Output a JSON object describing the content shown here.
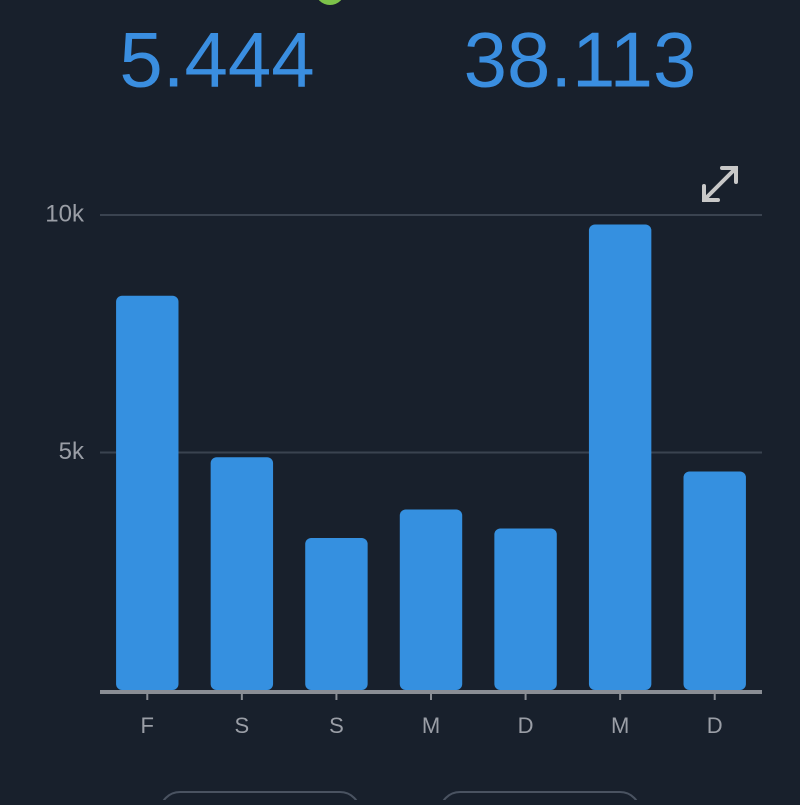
{
  "summary": [
    "5.444",
    "38.113"
  ],
  "chart_data": {
    "type": "bar",
    "categories": [
      "F",
      "S",
      "S",
      "M",
      "D",
      "M",
      "D"
    ],
    "values": [
      8300,
      4900,
      3200,
      3800,
      3400,
      9800,
      4600
    ],
    "color": "#3590e0",
    "ylim": [
      0,
      10000
    ],
    "yticks": [
      {
        "value": 5000,
        "label": "5k"
      },
      {
        "value": 10000,
        "label": "10k"
      }
    ],
    "grid": true
  }
}
